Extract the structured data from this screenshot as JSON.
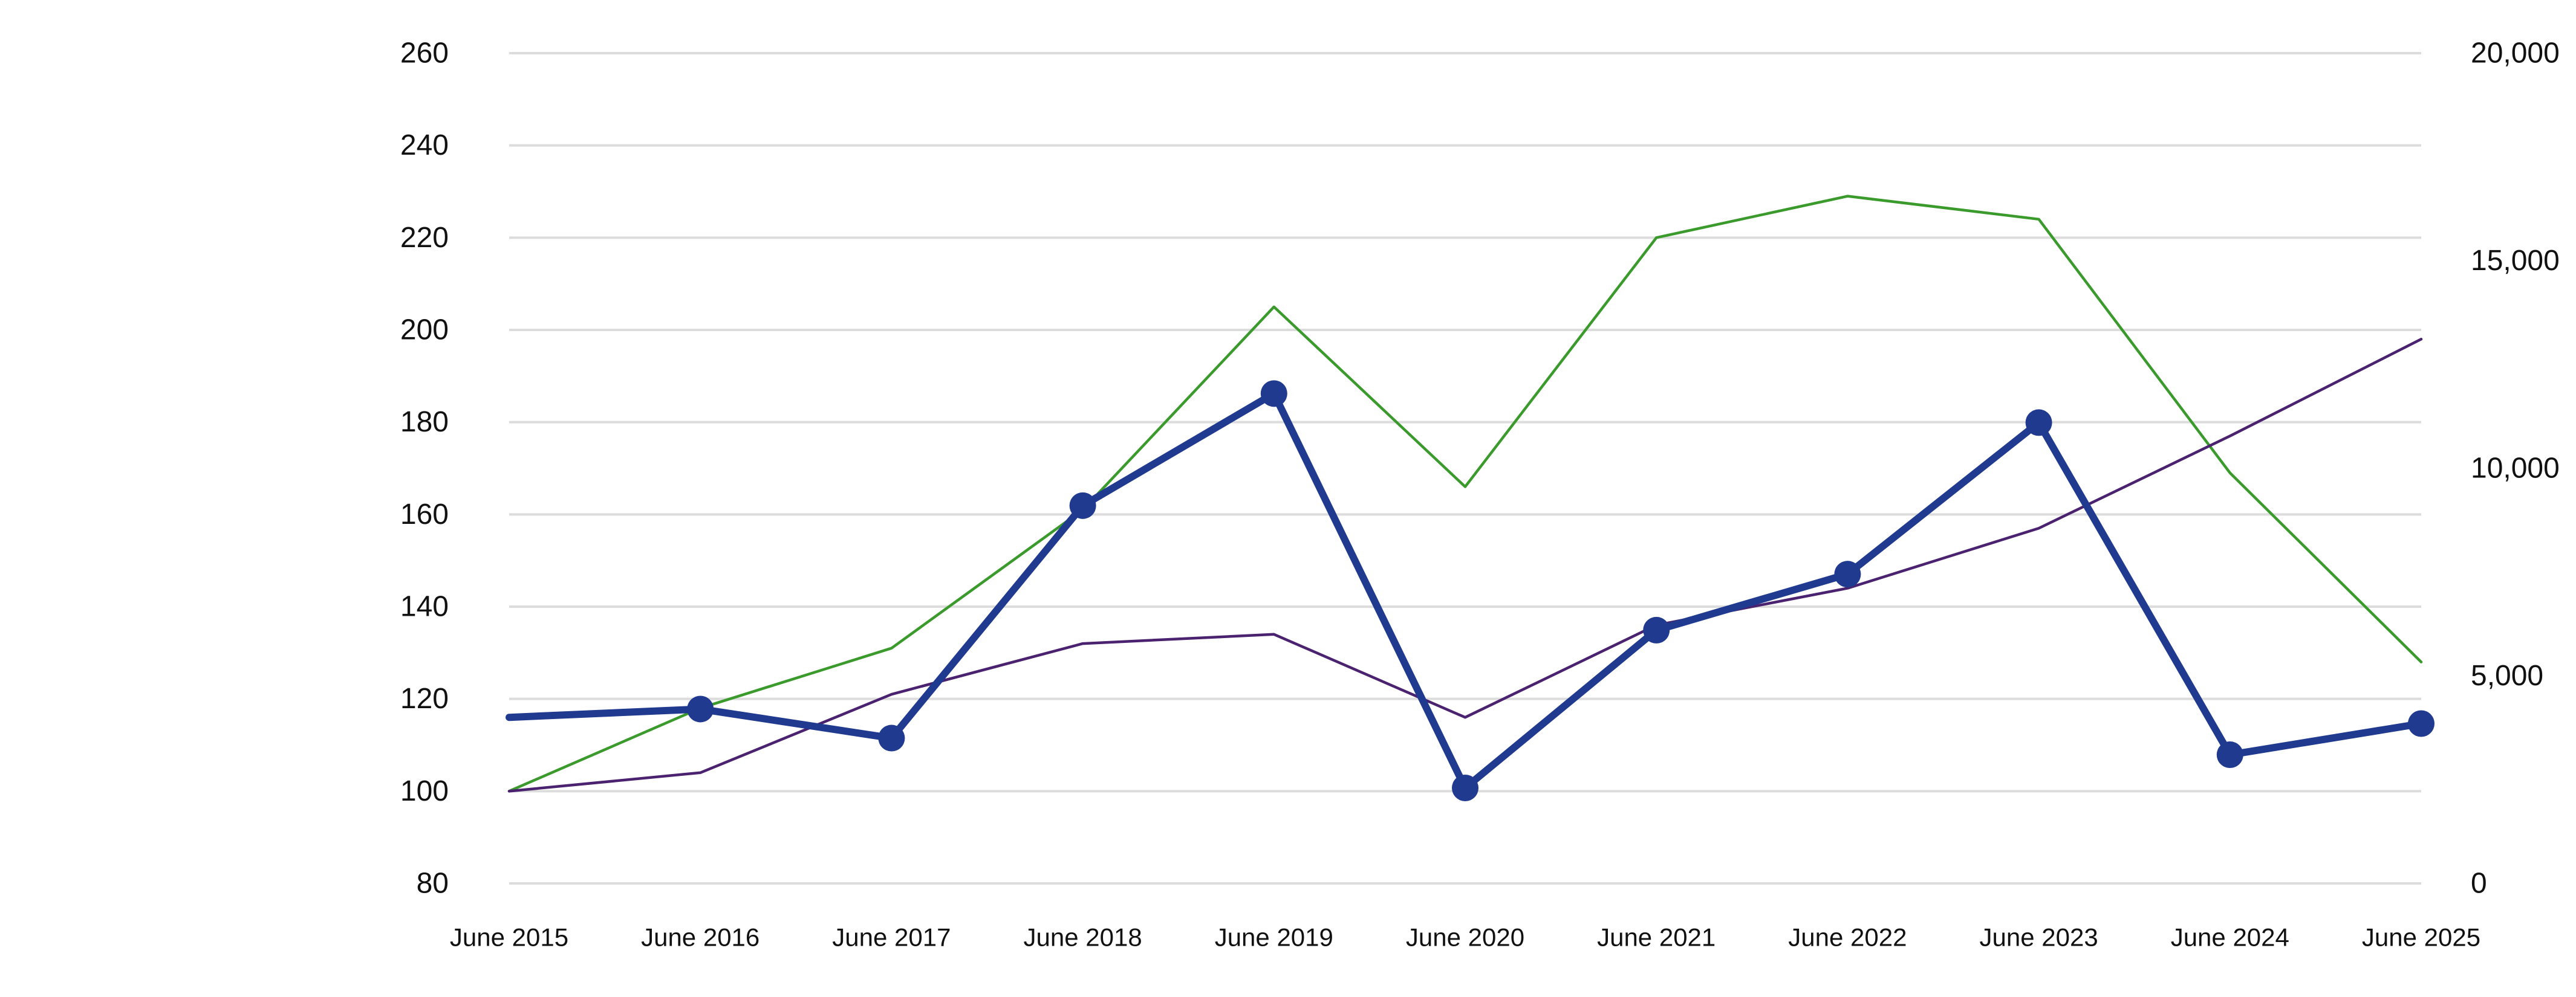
{
  "chart_data": {
    "type": "line",
    "title": "",
    "xlabel": "",
    "ylabel": "",
    "ylabel_right": "",
    "categories": [
      "June 2015",
      "June 2016",
      "June 2017",
      "June 2018",
      "June 2019",
      "June 2020",
      "June 2021",
      "June 2022",
      "June 2023",
      "June 2024",
      "June 2025"
    ],
    "ylim": [
      80,
      260
    ],
    "yticks": [
      80,
      100,
      120,
      140,
      160,
      180,
      200,
      220,
      240,
      260
    ],
    "ylim_right": [
      0,
      20000
    ],
    "yticks_right": [
      0,
      5000,
      10000,
      15000,
      20000
    ],
    "ytick_labels_right": [
      "0",
      "5,000",
      "10,000",
      "15,000",
      "20,000"
    ],
    "grid": true,
    "legend": "none",
    "series": [
      {
        "axis": "right",
        "color": "#1f3a8f",
        "style": "thick line with circle markers",
        "values": [
          4000,
          4200,
          3500,
          9100,
          11800,
          2300,
          6100,
          7450,
          11100,
          3100,
          3850
        ]
      },
      {
        "axis": "left",
        "color": "#3a9a2c",
        "style": "thin line",
        "values": [
          100,
          118,
          131,
          161,
          205,
          166,
          220,
          229,
          224,
          169,
          128
        ]
      },
      {
        "axis": "left",
        "color": "#4a2270",
        "style": "thin line",
        "values": [
          100,
          104,
          121,
          132,
          134,
          116,
          136,
          144,
          157,
          177,
          198
        ]
      }
    ]
  }
}
